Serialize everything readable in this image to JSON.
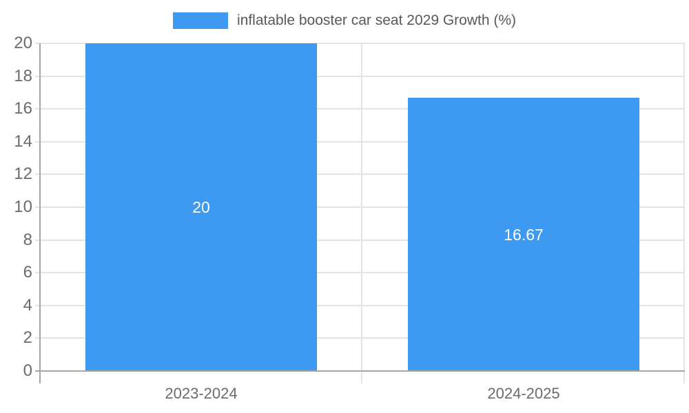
{
  "colors": {
    "bar": "#3D9AF0",
    "grid": "#E4E4E4",
    "axis": "#A5A5A5",
    "tick_text": "#6B6B6B",
    "legend_text": "#595959",
    "bar_label_text": "#FFFFFF",
    "background": "#FFFFFF"
  },
  "chart_data": {
    "type": "bar",
    "title": "",
    "legend_entries": [
      "inflatable booster car seat 2029 Growth (%)"
    ],
    "legend_position": "top",
    "categories": [
      "2023-2024",
      "2024-2025"
    ],
    "series": [
      {
        "name": "inflatable booster car seat 2029 Growth (%)",
        "values": [
          20,
          16.67
        ]
      }
    ],
    "value_labels": [
      "20",
      "16.67"
    ],
    "xlabel": "",
    "ylabel": "",
    "ylim": [
      0,
      20
    ],
    "ytick_step": 2,
    "yticks": [
      0,
      2,
      4,
      6,
      8,
      10,
      12,
      14,
      16,
      18,
      20
    ],
    "grid": true
  }
}
